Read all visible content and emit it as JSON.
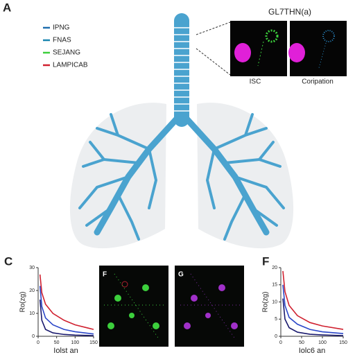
{
  "figure": {
    "panel_a": {
      "label": "A",
      "legend": [
        {
          "name": "IPNG",
          "color": "#1f6fae"
        },
        {
          "name": "FNAS",
          "color": "#1a86b0"
        },
        {
          "name": "SEJANG",
          "color": "#3ccf3c"
        },
        {
          "name": "LAMPICAB",
          "color": "#d0202f"
        }
      ],
      "inset_title": "GL7THN(a)",
      "inset_labels": [
        "ISC",
        "Coripation"
      ]
    },
    "image_labels": [
      "F",
      "G"
    ],
    "charts": [
      {
        "type": "line",
        "label": "C",
        "y_label": "Ro(zg)",
        "x_label": "Iolst an",
        "xlim": [
          0,
          150
        ],
        "xticks": [
          0,
          50,
          100,
          150
        ],
        "ylim": [
          0,
          30
        ],
        "yticks": [
          0,
          10,
          20,
          30
        ],
        "x": [
          5,
          10,
          20,
          40,
          70,
          100,
          150
        ],
        "series": [
          {
            "color": "#d0202f",
            "values": [
              27,
              19,
              14,
              10,
              7,
              5,
              3
            ]
          },
          {
            "color": "#2a46c8",
            "values": [
              22,
              13,
              8,
              5,
              3,
              2,
              1
            ]
          },
          {
            "color": "#1a1a6e",
            "values": [
              16,
              7,
              3,
              1.5,
              0.8,
              0.5,
              0.3
            ]
          }
        ]
      },
      {
        "type": "line",
        "label": "F",
        "y_label": "Ro(zg)",
        "x_label": "Iolc6 an",
        "xlim": [
          0,
          150
        ],
        "xticks": [
          0,
          50,
          100,
          150
        ],
        "ylim": [
          0,
          20
        ],
        "yticks": [
          0,
          5,
          10,
          15,
          20
        ],
        "x": [
          5,
          10,
          20,
          40,
          70,
          100,
          150
        ],
        "series": [
          {
            "color": "#d0202f",
            "values": [
              19,
              13,
              9,
              6,
              4,
              3,
              2
            ]
          },
          {
            "color": "#2a46c8",
            "values": [
              15,
              9,
              5.5,
              3.5,
              2,
              1.3,
              0.8
            ]
          },
          {
            "color": "#1a1a6e",
            "values": [
              11,
              5,
              2.5,
              1.2,
              0.6,
              0.4,
              0.2
            ]
          }
        ]
      }
    ]
  }
}
